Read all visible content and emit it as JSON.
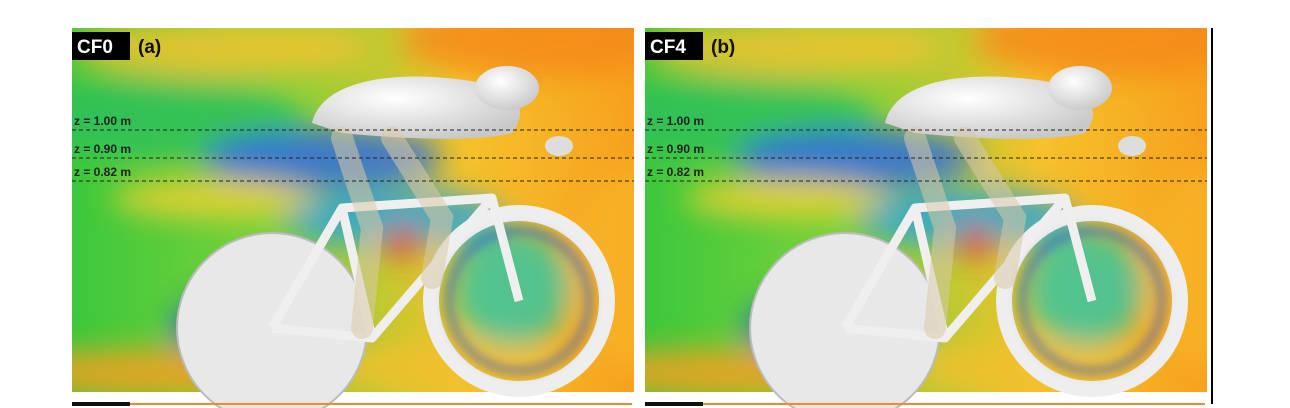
{
  "panels": [
    {
      "tag": "CF0",
      "label": "(a)",
      "levels": [
        "z = 1.00 m",
        "z = 0.90 m",
        "z = 0.82 m"
      ]
    },
    {
      "tag": "CF4",
      "label": "(b)",
      "levels": [
        "z = 1.00 m",
        "z = 0.90 m",
        "z = 0.82 m"
      ]
    }
  ]
}
